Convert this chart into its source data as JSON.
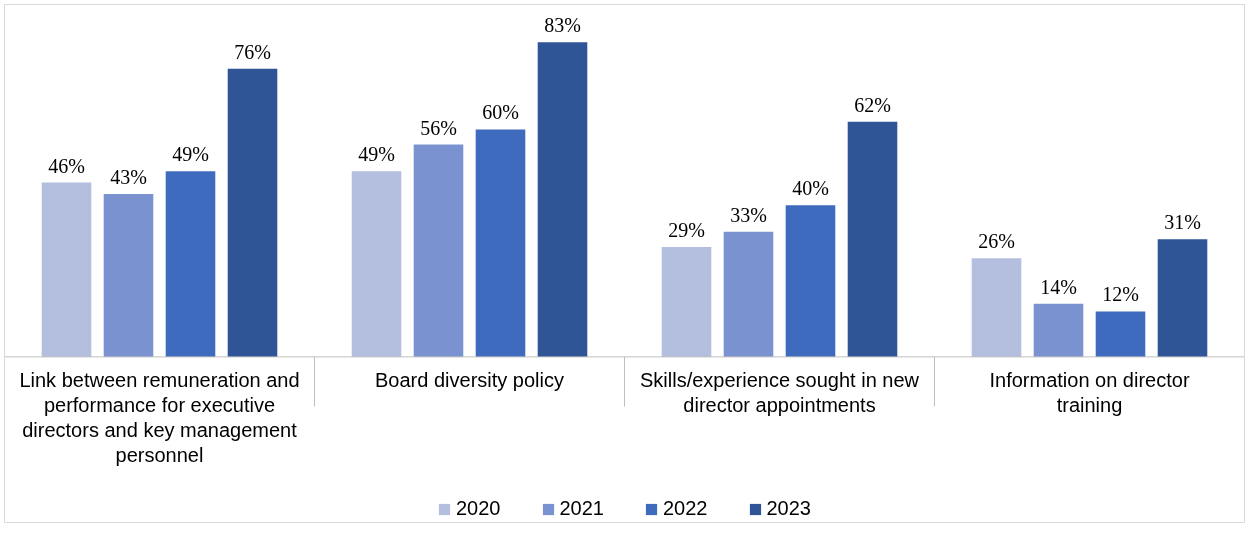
{
  "chart_data": {
    "type": "bar",
    "categories": [
      "Link between remuneration and performance for executive directors and key management personnel",
      "Board diversity policy",
      "Skills/experience sought in new director appointments",
      "Information on director training"
    ],
    "series": [
      {
        "name": "2020",
        "color": "#b4bfe0",
        "values": [
          46,
          49,
          29,
          26
        ],
        "value_labels": [
          "46%",
          "49%",
          "29%",
          "26%"
        ]
      },
      {
        "name": "2021",
        "color": "#7a93d0",
        "values": [
          43,
          56,
          33,
          14
        ],
        "value_labels": [
          "43%",
          "56%",
          "33%",
          "14%"
        ]
      },
      {
        "name": "2022",
        "color": "#3f6bbf",
        "values": [
          49,
          60,
          40,
          12
        ],
        "value_labels": [
          "49%",
          "60%",
          "40%",
          "12%"
        ]
      },
      {
        "name": "2023",
        "color": "#2f5597",
        "values": [
          76,
          83,
          62,
          31
        ],
        "value_labels": [
          "76%",
          "83%",
          "62%",
          "31%"
        ]
      }
    ],
    "legend": "bottom"
  }
}
